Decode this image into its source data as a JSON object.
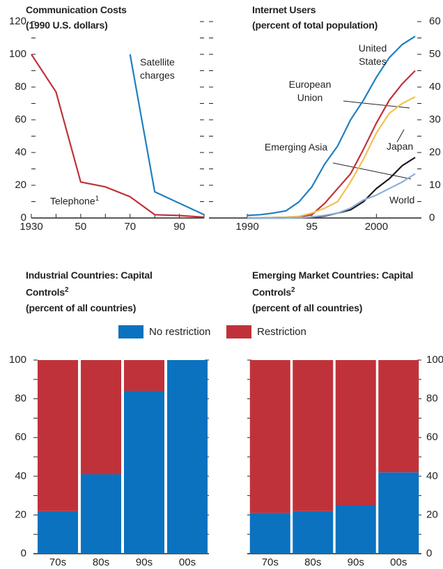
{
  "chart_data": [
    {
      "type": "line",
      "title": "Communication Costs",
      "subtitle": "(1990 U.S. dollars)",
      "xlim": [
        1930,
        2000
      ],
      "xticks": [
        1930,
        {
          "value": 1950,
          "label": "50"
        },
        {
          "value": 1970,
          "label": "70"
        },
        {
          "value": 1990,
          "label": "90"
        }
      ],
      "xticks_minor": [
        1940,
        1960,
        1980,
        2000
      ],
      "ylim": [
        0,
        120
      ],
      "yticks": [
        0,
        20,
        40,
        60,
        80,
        100,
        120
      ],
      "yticks_minor": [
        10,
        30,
        50,
        70,
        90,
        110
      ],
      "y_axis_side": "left",
      "series": [
        {
          "name": "Telephone",
          "footnote": "1",
          "color": "#c0323a",
          "x": [
            1930,
            1940,
            1950,
            1960,
            1970,
            1980,
            1990,
            2000
          ],
          "values": [
            100,
            77,
            22,
            19,
            13,
            2,
            1.5,
            0.5
          ]
        },
        {
          "name": "Satellite charges",
          "color": "#1f7fc1",
          "x": [
            1970,
            1980,
            2000
          ],
          "values": [
            100,
            16,
            2
          ]
        }
      ]
    },
    {
      "type": "line",
      "title": "Internet Users",
      "subtitle": "(percent of total population)",
      "xlim": [
        1990,
        2003
      ],
      "xticks": [
        1990,
        {
          "value": 1995,
          "label": "95"
        },
        2000
      ],
      "ylim": [
        0,
        60
      ],
      "yticks": [
        0,
        10,
        20,
        30,
        40,
        50,
        60
      ],
      "yticks_minor": [
        5,
        15,
        25,
        35,
        45,
        55
      ],
      "y_axis_side": "right",
      "x": [
        1990,
        1991,
        1992,
        1993,
        1994,
        1995,
        1996,
        1997,
        1998,
        1999,
        2000,
        2001,
        2002,
        2003
      ],
      "series": [
        {
          "name": "United States",
          "color": "#1f7fc1",
          "values": [
            0.8,
            1.0,
            1.5,
            2.2,
            4.9,
            9.5,
            16.5,
            22,
            30,
            36,
            43,
            49,
            53,
            55.5
          ]
        },
        {
          "name": "European Union",
          "color": "#c0323a",
          "values": [
            0,
            0,
            0.1,
            0.2,
            0.4,
            1,
            4.5,
            9,
            13.5,
            21,
            29,
            36,
            41,
            45
          ]
        },
        {
          "name": "Japan",
          "color": "#f2c14e",
          "values": [
            0,
            0,
            0.1,
            0.2,
            0.5,
            1.5,
            3,
            5,
            11,
            18,
            26,
            32,
            35,
            37
          ]
        },
        {
          "name": "Emerging Asia",
          "color": "#1a1a1a",
          "values": [
            0,
            0,
            0,
            0,
            0.1,
            0.2,
            0.6,
            1.5,
            2.5,
            5,
            9,
            12,
            16,
            18.5
          ]
        },
        {
          "name": "World",
          "color": "#8eaed8",
          "values": [
            0,
            0,
            0,
            0,
            0.1,
            0.3,
            0.8,
            1.5,
            3,
            5.5,
            7,
            9,
            11,
            13.5
          ]
        }
      ]
    },
    {
      "type": "stacked_bar",
      "title": "Industrial Countries: Capital Controls",
      "footnote": "2",
      "subtitle": "(percent of all countries)",
      "categories": [
        "70s",
        "80s",
        "90s",
        "00s"
      ],
      "ylim": [
        0,
        100
      ],
      "yticks": [
        0,
        20,
        40,
        60,
        80,
        100
      ],
      "yticks_minor": [
        10,
        30,
        50,
        70,
        90
      ],
      "y_axis_side": "left",
      "series": [
        {
          "name": "No restriction",
          "color": "#0a72bf",
          "values": [
            22,
            41,
            84,
            100
          ]
        },
        {
          "name": "Restriction",
          "color": "#c0323a",
          "values": [
            78,
            59,
            16,
            0
          ]
        }
      ]
    },
    {
      "type": "stacked_bar",
      "title": "Emerging Market Countries: Capital Controls",
      "footnote": "2",
      "subtitle": "(percent of all countries)",
      "categories": [
        "70s",
        "80s",
        "90s",
        "00s"
      ],
      "ylim": [
        0,
        100
      ],
      "yticks": [
        0,
        20,
        40,
        60,
        80,
        100
      ],
      "yticks_minor": [
        10,
        30,
        50,
        70,
        90
      ],
      "y_axis_side": "right",
      "series": [
        {
          "color": "#0a72bf",
          "values": [
            21,
            22,
            25,
            42
          ]
        },
        {
          "color": "#c0323a",
          "values": [
            79,
            78,
            75,
            58
          ]
        }
      ]
    }
  ]
}
